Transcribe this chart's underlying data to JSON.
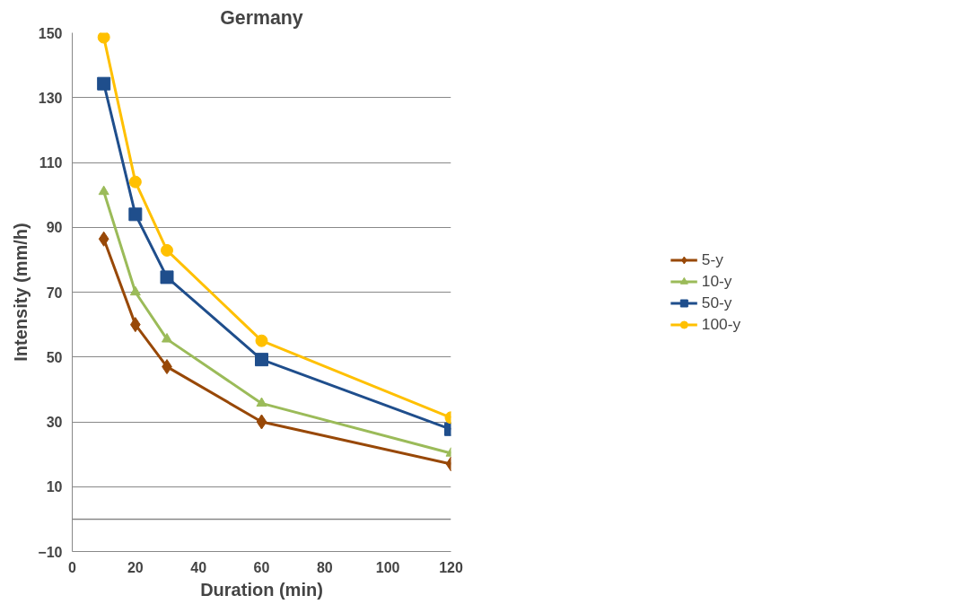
{
  "chart_data": {
    "type": "line",
    "title": "Germany",
    "xlabel": "Duration (min)",
    "ylabel": "Intensity (mm/h)",
    "x": [
      10,
      20,
      30,
      60,
      120
    ],
    "series": [
      {
        "name": "5-y",
        "color": "#984807",
        "marker": "diamond",
        "values": [
          86.4,
          60,
          47,
          30,
          17
        ]
      },
      {
        "name": "10-y",
        "color": "#9bbb59",
        "marker": "triangle",
        "values": [
          101,
          70,
          55.5,
          35.7,
          20.3
        ]
      },
      {
        "name": "50-y",
        "color": "#1f4e8c",
        "marker": "square",
        "values": [
          134.3,
          94,
          74.6,
          49.2,
          27.7
        ]
      },
      {
        "name": "100-y",
        "color": "#ffc000",
        "marker": "circle",
        "values": [
          148.6,
          104,
          82.9,
          55,
          31.3
        ]
      }
    ],
    "xlim": [
      0,
      120
    ],
    "xticks": [
      0,
      20,
      40,
      60,
      80,
      100,
      120
    ],
    "ylim": [
      -10,
      150
    ],
    "yticks": [
      -10,
      10,
      30,
      50,
      70,
      90,
      110,
      130,
      150
    ],
    "ref_lines": [
      {
        "axis": "y",
        "value": 0
      }
    ],
    "grid": "y",
    "legend": "right",
    "line_style": "solid"
  }
}
